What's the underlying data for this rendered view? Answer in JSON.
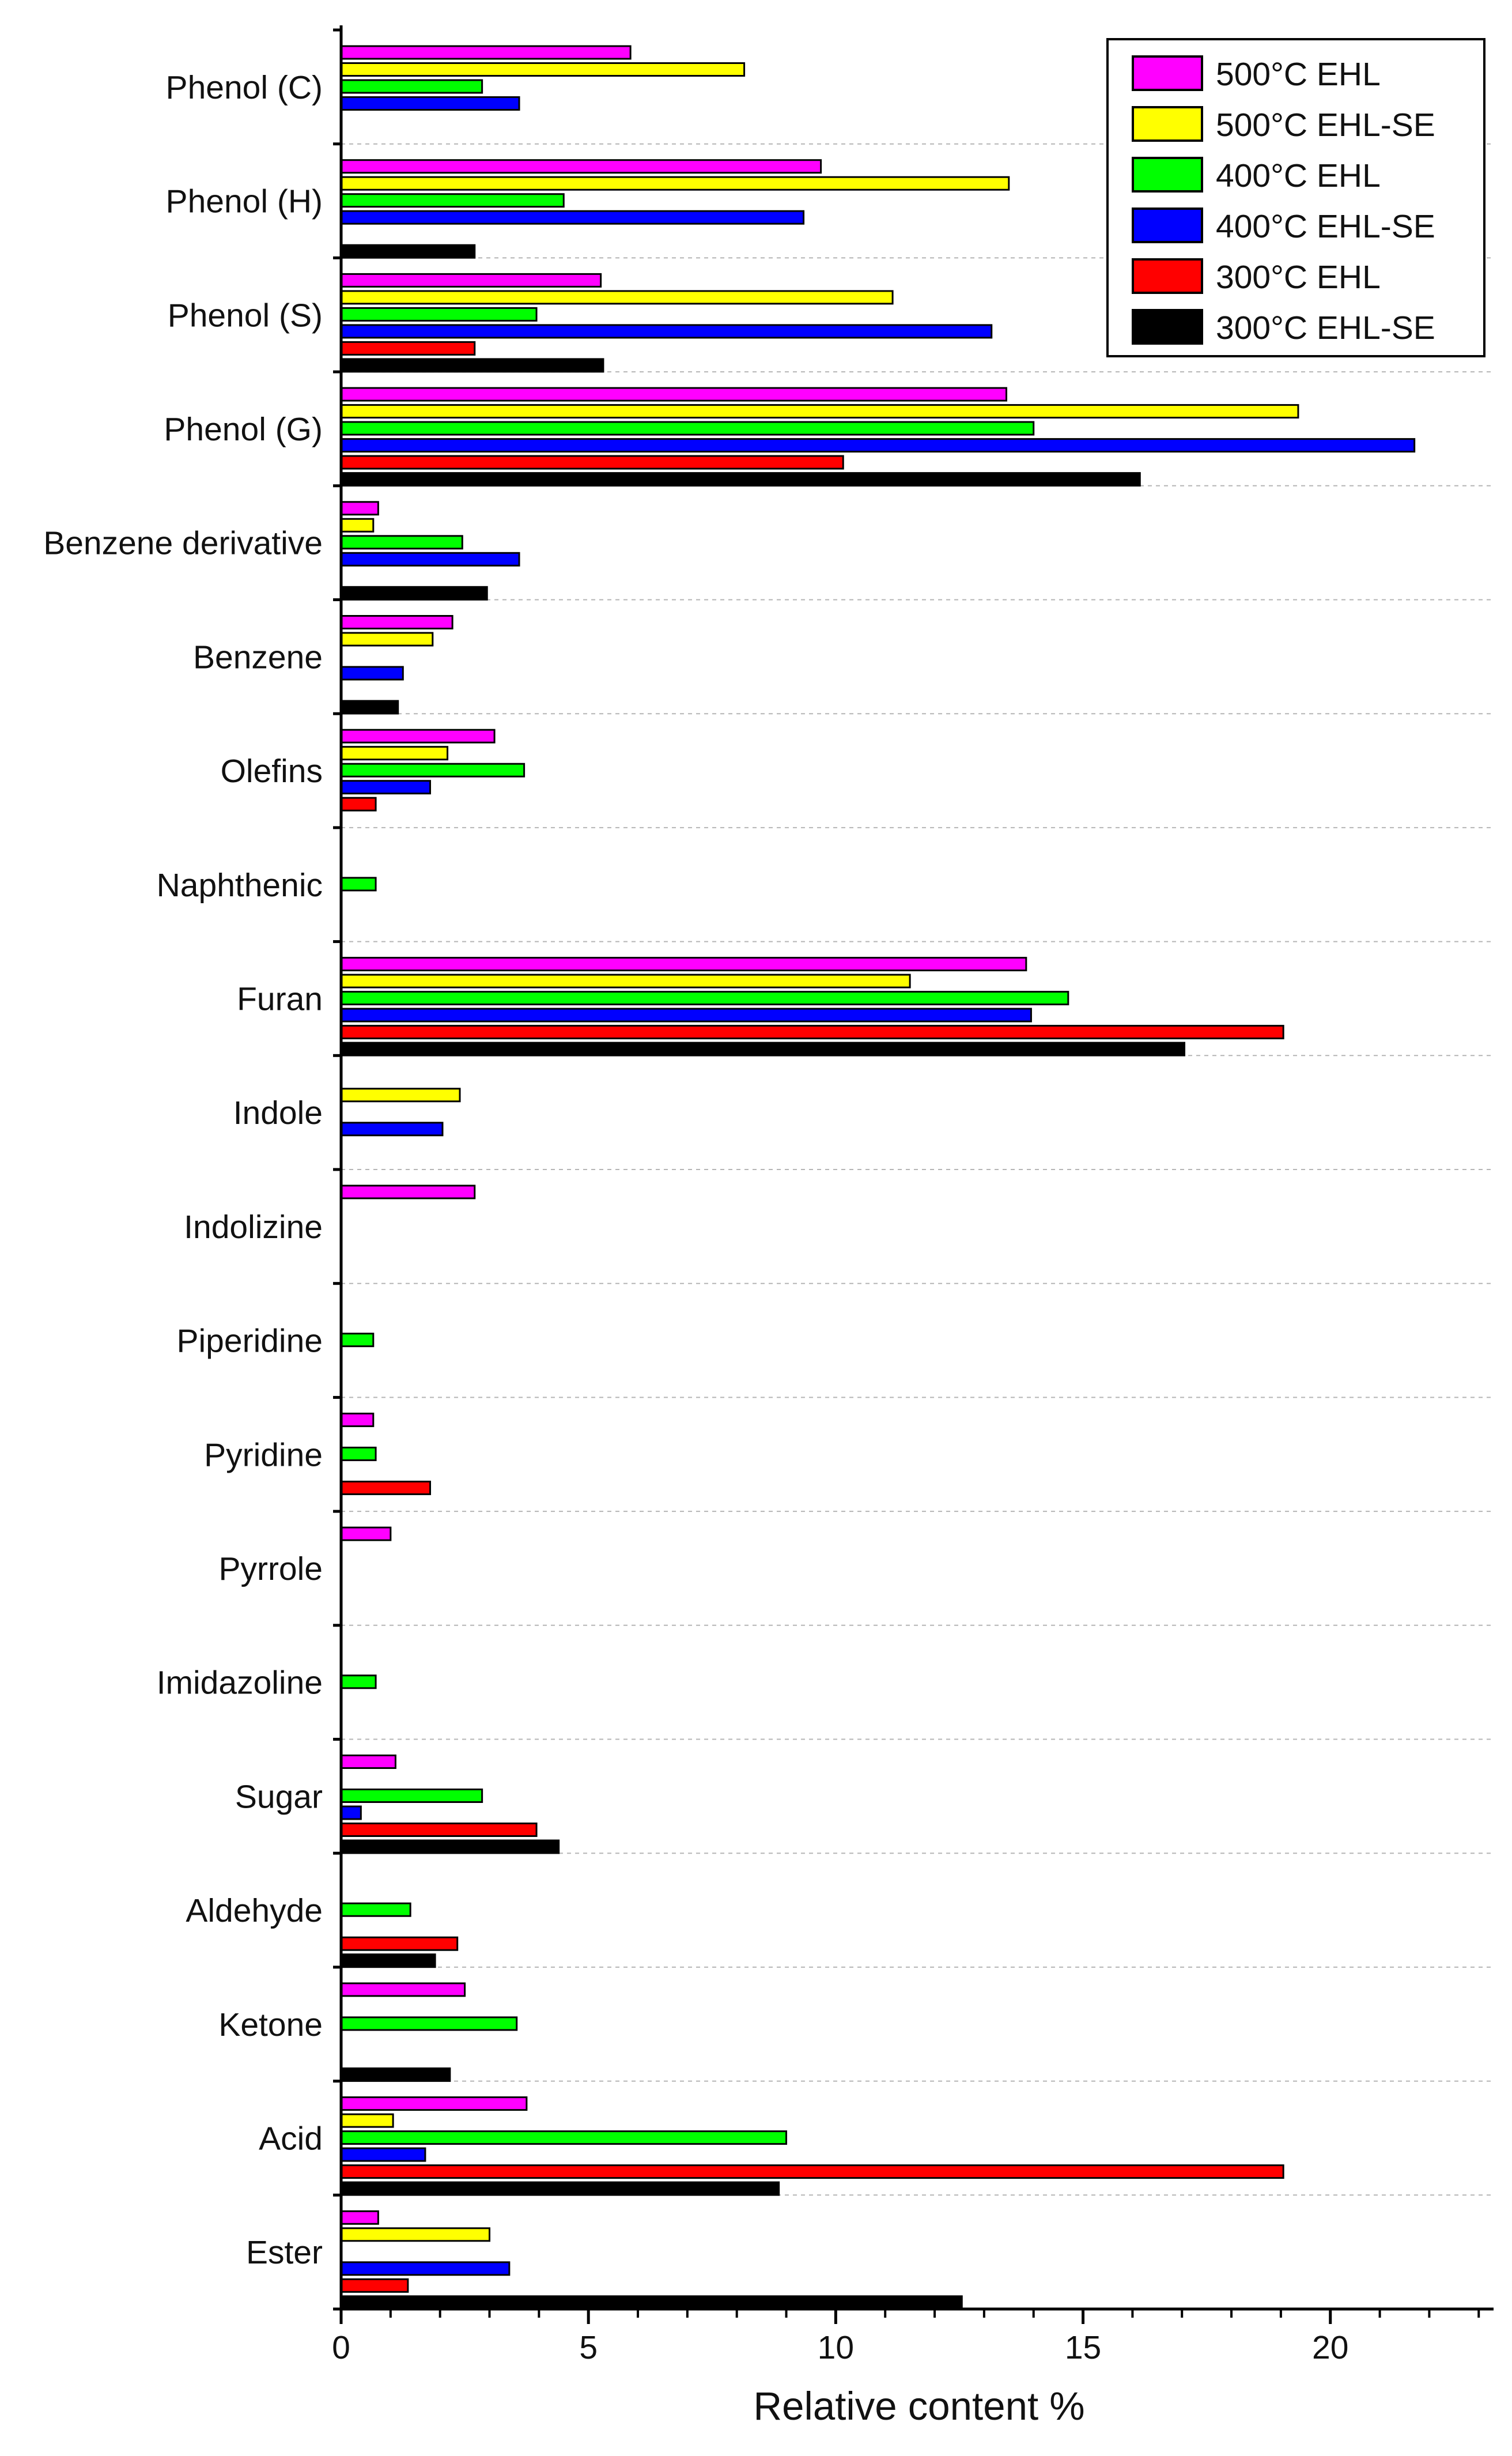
{
  "chart_data": {
    "type": "bar",
    "orientation": "horizontal",
    "categories": [
      "Phenol (C)",
      "Phenol (H)",
      "Phenol (S)",
      "Phenol (G)",
      "Benzene derivative",
      "Benzene",
      "Olefins",
      "Naphthenic",
      "Furan",
      "Indole",
      "Indolizine",
      "Piperidine",
      "Pyridine",
      "Pyrrole",
      "Imidazoline",
      "Sugar",
      "Aldehyde",
      "Ketone",
      "Acid",
      "Ester"
    ],
    "series": [
      {
        "name": "500°C EHL",
        "color": "#ff00ff",
        "values": [
          5.85,
          9.7,
          5.25,
          13.45,
          0.75,
          2.25,
          3.1,
          0,
          13.85,
          0,
          2.7,
          0,
          0.65,
          1.0,
          0,
          1.1,
          0,
          2.5,
          3.75,
          0.75
        ]
      },
      {
        "name": "500°C EHL-SE",
        "color": "#ffff00",
        "values": [
          8.15,
          13.5,
          11.15,
          19.35,
          0.65,
          1.85,
          2.15,
          0,
          11.5,
          2.4,
          0,
          0,
          0,
          0,
          0,
          0,
          0,
          0,
          1.05,
          3.0
        ]
      },
      {
        "name": "400°C EHL",
        "color": "#00ff00",
        "values": [
          2.85,
          4.5,
          3.95,
          14.0,
          2.45,
          0,
          3.7,
          0.7,
          14.7,
          0,
          0,
          0.65,
          0.7,
          0,
          0.7,
          2.85,
          1.4,
          3.55,
          9.0,
          0
        ]
      },
      {
        "name": "400°C EHL-SE",
        "color": "#0000ff",
        "values": [
          3.6,
          9.35,
          13.15,
          21.7,
          3.6,
          1.25,
          1.8,
          0,
          13.95,
          2.05,
          0,
          0,
          0,
          0,
          0,
          0.4,
          0,
          0,
          1.7,
          3.4
        ]
      },
      {
        "name": "300°C EHL",
        "color": "#ff0000",
        "values": [
          0,
          0,
          2.7,
          10.15,
          0,
          0,
          0.7,
          0,
          19.05,
          0,
          0,
          0,
          1.8,
          0,
          0,
          3.95,
          2.35,
          0,
          19.05,
          1.35
        ]
      },
      {
        "name": "300°C EHL-SE",
        "color": "#000000",
        "values": [
          0,
          2.7,
          5.3,
          16.15,
          2.95,
          1.15,
          0,
          0,
          17.05,
          0,
          0,
          0,
          0,
          0,
          0,
          4.4,
          1.9,
          2.2,
          8.85,
          12.55
        ]
      }
    ],
    "xlabel": "Relative content %",
    "ylabel": "",
    "xlim": [
      0,
      23.3
    ],
    "xticks": [
      0,
      5,
      10,
      15,
      20
    ],
    "grid": "horizontal dashed separators between categories",
    "legend_position": "top-right"
  }
}
